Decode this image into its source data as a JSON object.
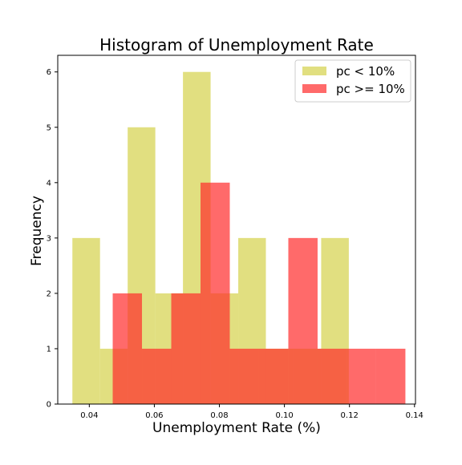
{
  "chart_data": {
    "type": "bar",
    "title": "Histogram of Unemployment Rate",
    "xlabel": "Unemployment Rate (%)",
    "ylabel": "Frequency",
    "xlim": [
      0.0303,
      0.1403
    ],
    "ylim": [
      0,
      6.3
    ],
    "xticks": [
      0.04,
      0.06,
      0.08,
      0.1,
      0.12,
      0.14
    ],
    "xtick_labels": [
      "0.04",
      "0.06",
      "0.08",
      "0.10",
      "0.12",
      "0.14"
    ],
    "yticks": [
      0,
      1,
      2,
      3,
      4,
      5,
      6
    ],
    "ytick_labels": [
      "0",
      "1",
      "2",
      "3",
      "4",
      "5",
      "6"
    ],
    "grid": false,
    "legend_position": "top-right",
    "series": [
      {
        "name": "pc < 10%",
        "color": "#d4d24a",
        "opacity": 0.7,
        "bins": [
          {
            "x0": 0.0348,
            "x1": 0.0433,
            "value": 3
          },
          {
            "x0": 0.0433,
            "x1": 0.0518,
            "value": 1
          },
          {
            "x0": 0.0518,
            "x1": 0.0603,
            "value": 5
          },
          {
            "x0": 0.0603,
            "x1": 0.0688,
            "value": 2
          },
          {
            "x0": 0.0688,
            "x1": 0.0773,
            "value": 6
          },
          {
            "x0": 0.0773,
            "x1": 0.0858,
            "value": 2
          },
          {
            "x0": 0.0858,
            "x1": 0.0943,
            "value": 3
          },
          {
            "x0": 0.0943,
            "x1": 0.1028,
            "value": 1
          },
          {
            "x0": 0.1028,
            "x1": 0.1113,
            "value": 1
          },
          {
            "x0": 0.1113,
            "x1": 0.1198,
            "value": 3
          }
        ]
      },
      {
        "name": "pc >= 10%",
        "color": "#ff2b2b",
        "opacity": 0.7,
        "bins": [
          {
            "x0": 0.0472,
            "x1": 0.0562,
            "value": 2
          },
          {
            "x0": 0.0562,
            "x1": 0.0652,
            "value": 1
          },
          {
            "x0": 0.0652,
            "x1": 0.0742,
            "value": 2
          },
          {
            "x0": 0.0742,
            "x1": 0.0832,
            "value": 4
          },
          {
            "x0": 0.0832,
            "x1": 0.0922,
            "value": 1
          },
          {
            "x0": 0.0922,
            "x1": 0.1012,
            "value": 1
          },
          {
            "x0": 0.1012,
            "x1": 0.1102,
            "value": 3
          },
          {
            "x0": 0.1102,
            "x1": 0.1192,
            "value": 1
          },
          {
            "x0": 0.1192,
            "x1": 0.1282,
            "value": 1
          },
          {
            "x0": 0.1282,
            "x1": 0.1372,
            "value": 1
          }
        ]
      }
    ]
  }
}
